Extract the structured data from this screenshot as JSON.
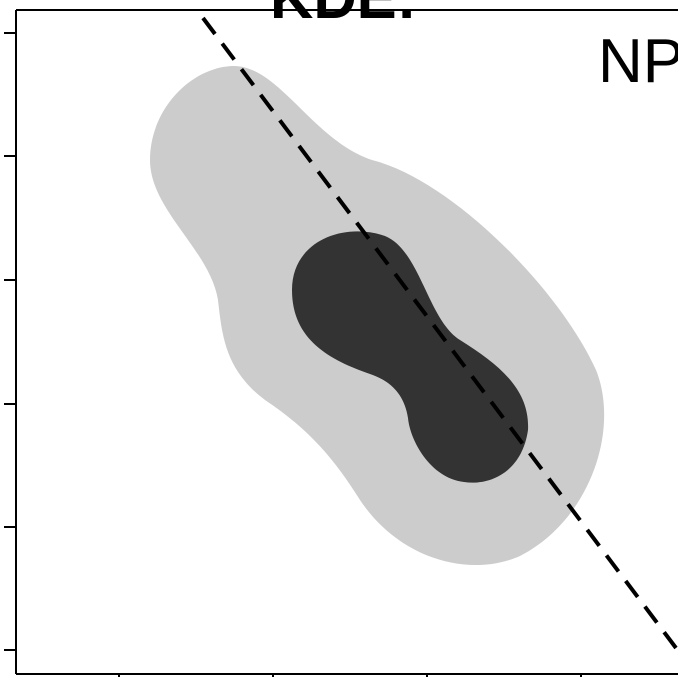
{
  "chart_data": {
    "type": "contour",
    "title": "KDE:",
    "panel_label": "NP",
    "xlabel": "",
    "ylabel": "",
    "x_ticks_count": 4,
    "y_ticks_count": 6,
    "regions": [
      {
        "name": "",
        "fill": "#cccccc"
      },
      {
        "name": "",
        "fill": "#333333"
      }
    ],
    "reference_line": {
      "style": "dashed",
      "color": "#000000"
    },
    "axis_color": "#000000",
    "background": "#ffffff"
  }
}
